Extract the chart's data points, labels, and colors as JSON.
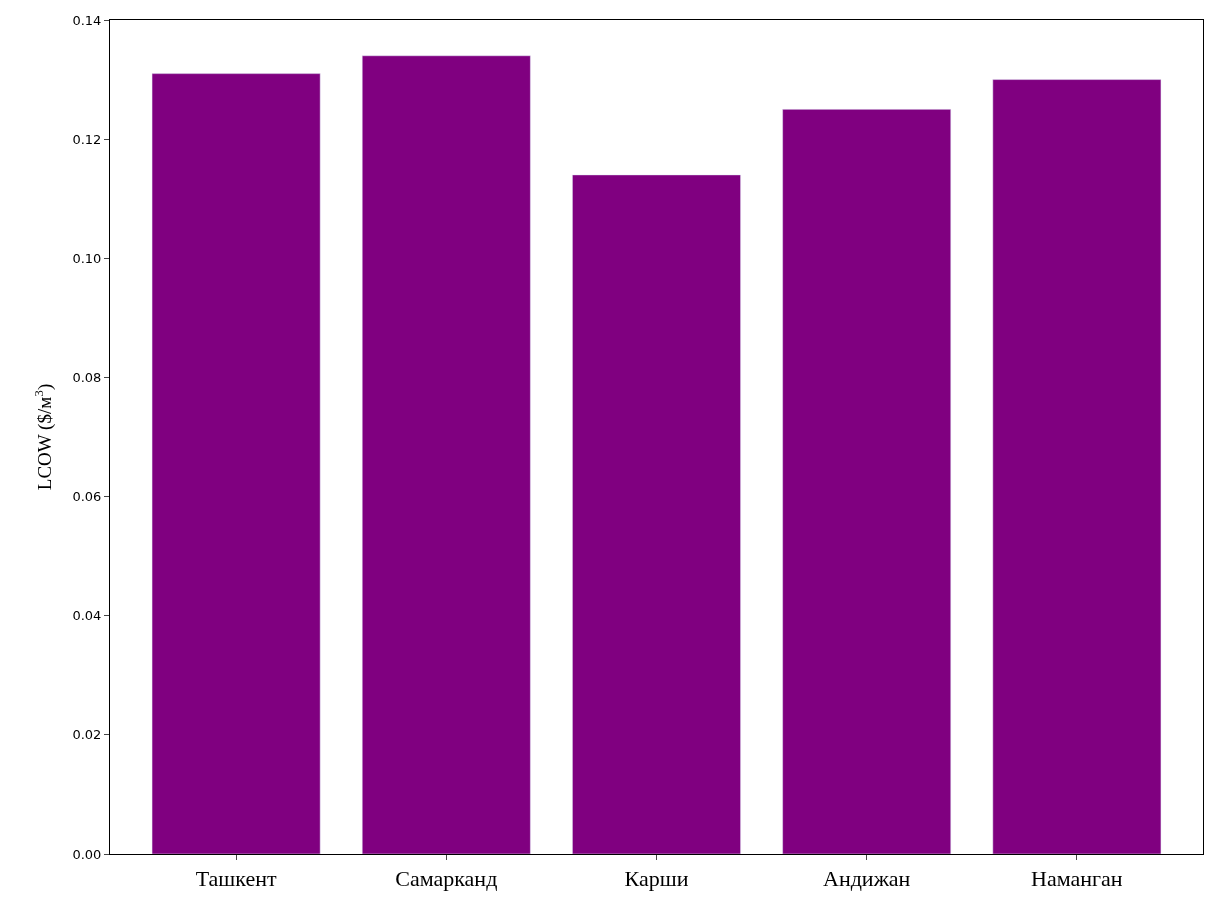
{
  "chart_data": {
    "type": "bar",
    "ylabel": "LCOW ($/м$^{3}$)",
    "categories": [
      "Ташкент",
      "Самарканд",
      "Карши",
      "Андижан",
      "Наманган"
    ],
    "values": [
      0.131,
      0.134,
      0.114,
      0.125,
      0.13
    ],
    "color": "#800080",
    "ylim": [
      0,
      0.14
    ],
    "yticks": [
      {
        "value": 0,
        "label": "0.00"
      },
      {
        "value": 0.02,
        "label": "0.02"
      },
      {
        "value": 0.04,
        "label": "0.04"
      },
      {
        "value": 0.06,
        "label": "0.06"
      },
      {
        "value": 0.08,
        "label": "0.08"
      },
      {
        "value": 0.1,
        "label": "0.10"
      },
      {
        "value": 0.12,
        "label": "0.12"
      },
      {
        "value": 0.14,
        "label": "0.14"
      }
    ],
    "grid": false
  }
}
